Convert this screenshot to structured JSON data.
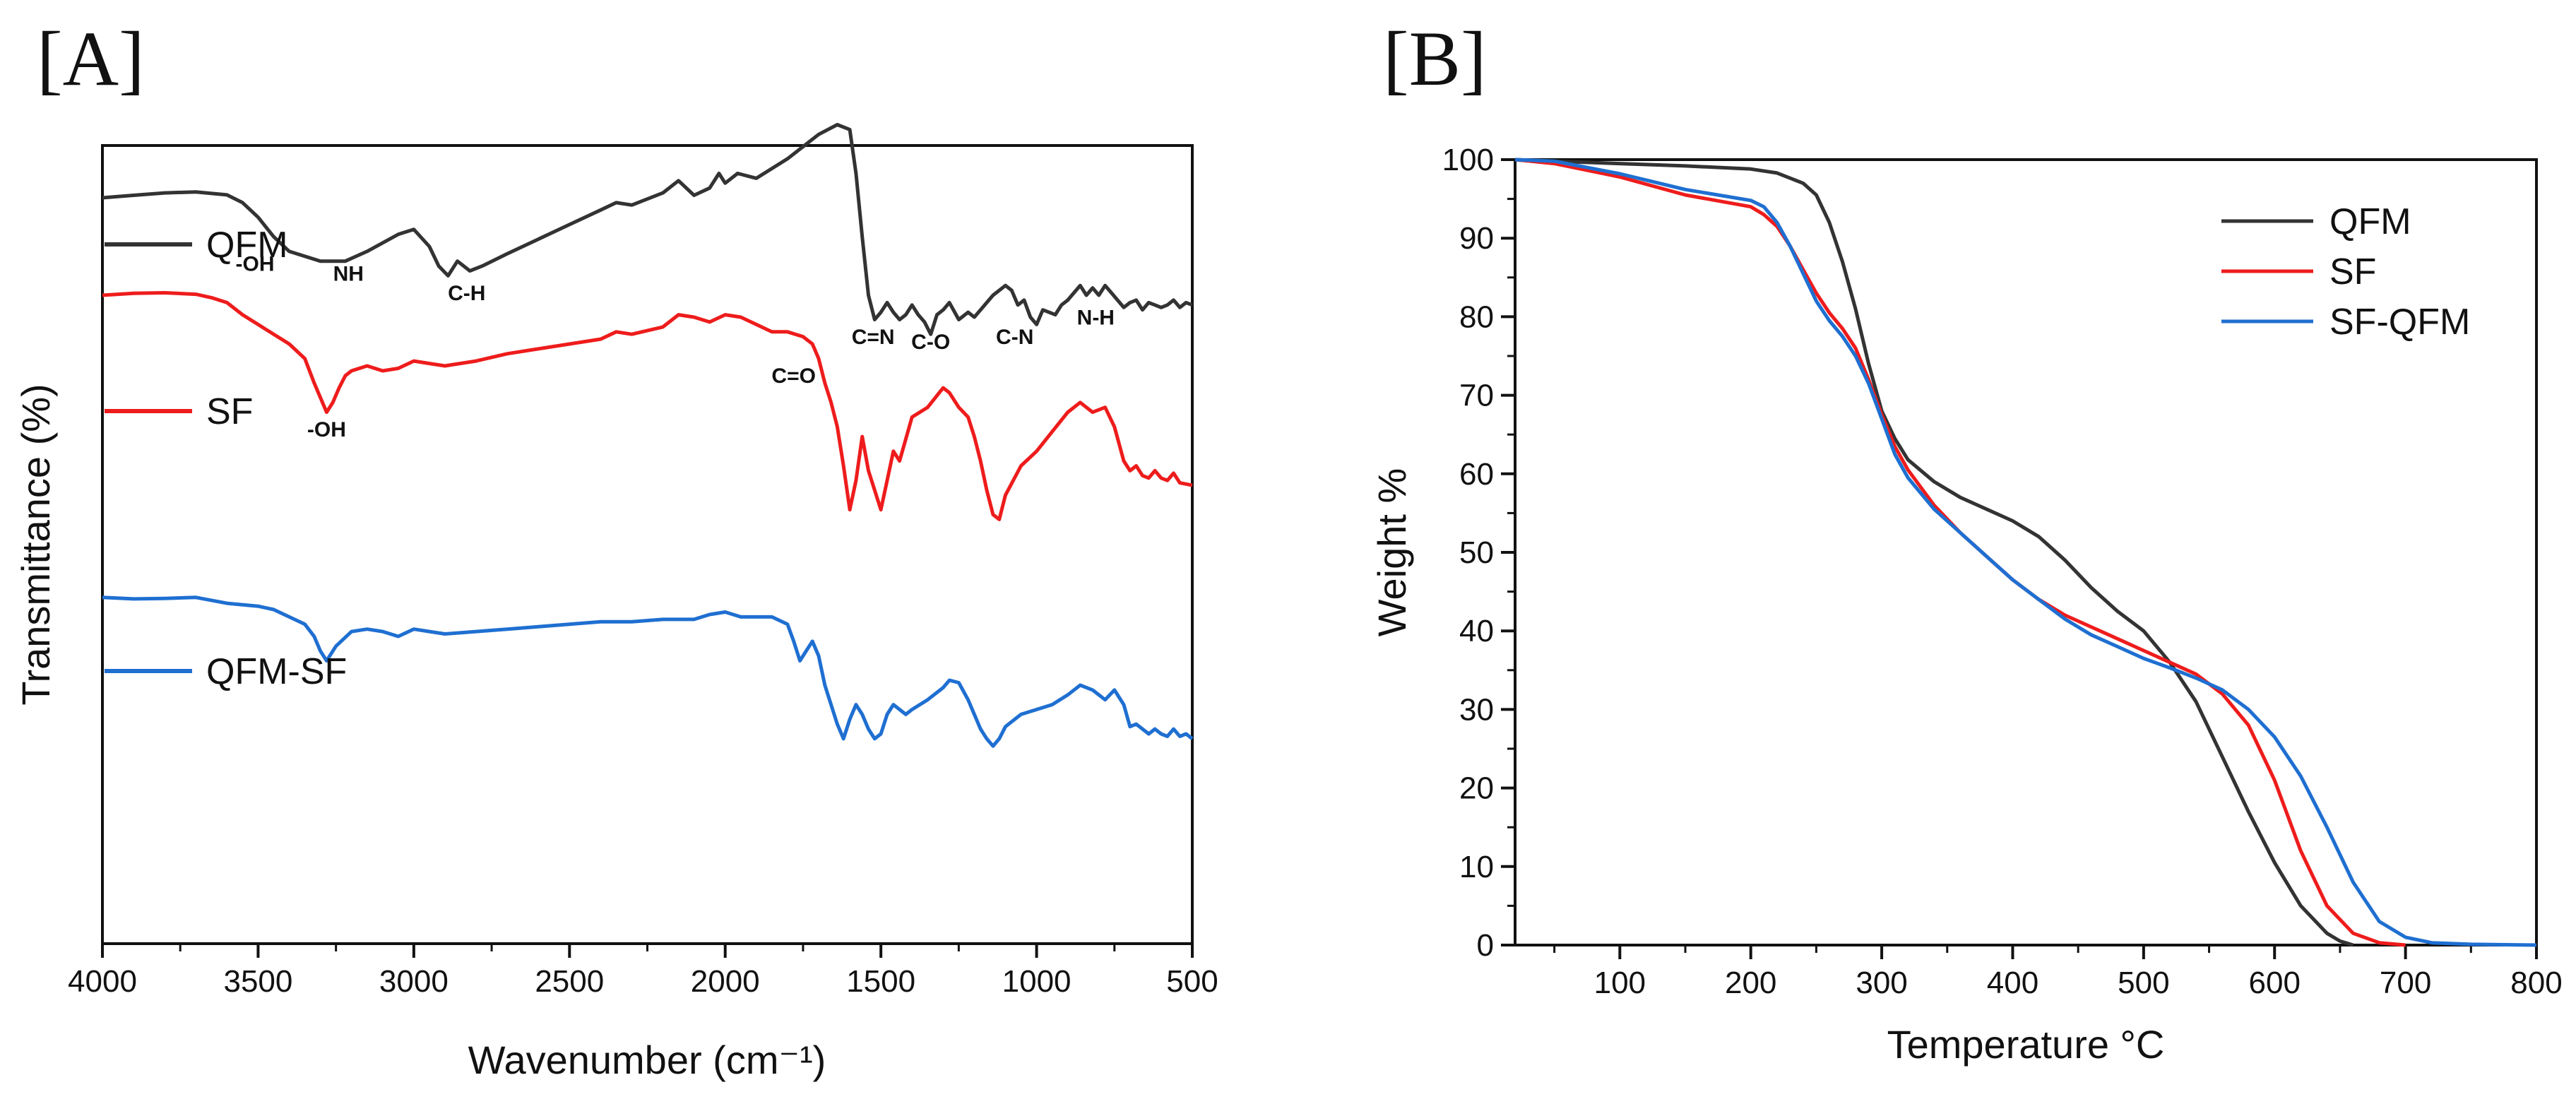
{
  "chart_data": [
    {
      "panel": "[A]",
      "type": "line",
      "xlabel": "Wavenumber (cm⁻¹)",
      "ylabel": "Transmittance (%)",
      "xlim": [
        4000,
        500
      ],
      "xticks": [
        4000,
        3500,
        3000,
        2500,
        2000,
        1500,
        1000,
        500
      ],
      "series": [
        {
          "name": "QFM",
          "color": "#333333",
          "x": [
            4000,
            3900,
            3800,
            3700,
            3600,
            3550,
            3500,
            3450,
            3400,
            3300,
            3220,
            3150,
            3050,
            3000,
            2950,
            2920,
            2890,
            2860,
            2820,
            2780,
            2700,
            2600,
            2500,
            2400,
            2350,
            2300,
            2200,
            2150,
            2100,
            2050,
            2020,
            2000,
            1960,
            1900,
            1800,
            1700,
            1640,
            1600,
            1580,
            1560,
            1540,
            1520,
            1500,
            1480,
            1460,
            1440,
            1420,
            1400,
            1380,
            1360,
            1340,
            1320,
            1300,
            1280,
            1250,
            1220,
            1200,
            1180,
            1160,
            1140,
            1120,
            1100,
            1080,
            1060,
            1040,
            1020,
            1000,
            980,
            960,
            940,
            920,
            900,
            880,
            860,
            840,
            820,
            800,
            780,
            760,
            740,
            720,
            700,
            680,
            660,
            640,
            620,
            600,
            580,
            560,
            540,
            520,
            500
          ],
          "y": [
            50,
            50.5,
            51,
            51.2,
            50.6,
            49,
            46,
            42,
            39,
            37,
            37,
            39,
            42.5,
            43.5,
            40,
            36,
            34,
            37,
            35,
            36,
            38.5,
            41.5,
            44.5,
            47.5,
            49,
            48.5,
            51,
            53.5,
            50.5,
            52,
            55,
            53,
            55,
            54,
            58,
            63,
            65,
            64,
            55,
            42,
            30,
            25,
            26.5,
            28.5,
            26.5,
            25,
            26,
            28,
            26,
            24.5,
            22,
            26,
            27,
            28.5,
            25,
            26.5,
            25.5,
            27,
            28.5,
            30,
            31,
            32,
            31,
            28,
            29,
            25.5,
            24,
            27,
            26.5,
            26,
            28,
            29,
            30.5,
            32,
            30,
            31.5,
            30,
            32,
            30.5,
            29,
            27.5,
            28.5,
            29,
            27,
            28.5,
            28,
            27.5,
            28,
            29,
            27.5,
            28.5,
            28
          ]
        },
        {
          "name": "SF",
          "color": "#ee1c1c",
          "x": [
            4000,
            3900,
            3800,
            3700,
            3650,
            3600,
            3550,
            3500,
            3450,
            3400,
            3350,
            3320,
            3300,
            3280,
            3260,
            3240,
            3220,
            3200,
            3150,
            3100,
            3050,
            3000,
            2950,
            2900,
            2800,
            2700,
            2600,
            2500,
            2400,
            2350,
            2300,
            2200,
            2150,
            2100,
            2050,
            2000,
            1950,
            1900,
            1850,
            1800,
            1750,
            1720,
            1700,
            1680,
            1660,
            1640,
            1620,
            1600,
            1580,
            1560,
            1540,
            1520,
            1500,
            1480,
            1460,
            1440,
            1400,
            1350,
            1300,
            1280,
            1250,
            1220,
            1200,
            1180,
            1160,
            1140,
            1120,
            1100,
            1050,
            1000,
            950,
            900,
            860,
            820,
            780,
            750,
            720,
            700,
            680,
            660,
            640,
            620,
            600,
            580,
            560,
            540,
            500
          ],
          "y": [
            30,
            30.4,
            30.5,
            30.2,
            29.5,
            28.5,
            26,
            24,
            22,
            20,
            17,
            12,
            9,
            6,
            8,
            11,
            13.5,
            14.5,
            15.5,
            14.5,
            15,
            16.5,
            16,
            15.5,
            16.5,
            18,
            19,
            20,
            21,
            22.5,
            22,
            23.5,
            26,
            25.5,
            24.5,
            26,
            25.5,
            24,
            22.5,
            22.5,
            21.5,
            20,
            17,
            12,
            8,
            3,
            -5,
            -14,
            -8,
            1,
            -6,
            -10,
            -14,
            -8,
            -2,
            -4,
            5,
            7,
            11,
            10,
            7,
            5,
            1,
            -4,
            -10,
            -15,
            -16,
            -11,
            -5,
            -2,
            2,
            6,
            8,
            6,
            7,
            3,
            -4,
            -6,
            -5,
            -7,
            -7.5,
            -6,
            -7.5,
            -8,
            -6.5,
            -8.5,
            -9
          ]
        },
        {
          "name": "QFM-SF",
          "color": "#1f6fd1",
          "x": [
            4000,
            3900,
            3800,
            3700,
            3600,
            3500,
            3450,
            3400,
            3350,
            3320,
            3300,
            3280,
            3250,
            3200,
            3150,
            3100,
            3050,
            3000,
            2950,
            2900,
            2800,
            2700,
            2600,
            2500,
            2400,
            2300,
            2200,
            2100,
            2050,
            2000,
            1950,
            1900,
            1850,
            1800,
            1780,
            1760,
            1740,
            1720,
            1700,
            1680,
            1660,
            1640,
            1620,
            1600,
            1580,
            1560,
            1540,
            1520,
            1500,
            1480,
            1460,
            1440,
            1420,
            1400,
            1350,
            1300,
            1280,
            1250,
            1220,
            1200,
            1180,
            1160,
            1140,
            1120,
            1100,
            1050,
            1000,
            950,
            900,
            860,
            820,
            780,
            750,
            720,
            700,
            680,
            660,
            640,
            620,
            600,
            580,
            560,
            540,
            520,
            500
          ],
          "y": [
            -32,
            -32.3,
            -32.2,
            -32,
            -33.2,
            -33.8,
            -34.5,
            -36,
            -37.5,
            -40,
            -43,
            -45,
            -42,
            -39,
            -38.5,
            -39,
            -40,
            -38.5,
            -39,
            -39.5,
            -39,
            -38.5,
            -38,
            -37.5,
            -37,
            -37,
            -36.5,
            -36.5,
            -35.5,
            -35,
            -36,
            -36,
            -36,
            -37.5,
            -41,
            -45,
            -43,
            -41,
            -44,
            -50,
            -54,
            -58,
            -61,
            -57,
            -54,
            -56,
            -59,
            -61,
            -60,
            -56,
            -54,
            -55,
            -56,
            -55,
            -53,
            -50.5,
            -49,
            -49.5,
            -53,
            -56,
            -59,
            -61,
            -62.5,
            -61,
            -58.5,
            -56,
            -55,
            -54,
            -52,
            -50,
            -51,
            -53,
            -51,
            -54,
            -58.5,
            -58,
            -59,
            -60,
            -59,
            -60,
            -60.5,
            -59,
            -60.5,
            -60,
            -61
          ]
        }
      ],
      "legend": [
        "QFM",
        "SF",
        "QFM-SF"
      ],
      "annotations": [
        {
          "text": "-OH",
          "x": 3510,
          "y": 35
        },
        {
          "text": "NH",
          "x": 3210,
          "y": 33
        },
        {
          "text": "C-H",
          "x": 2830,
          "y": 29
        },
        {
          "text": "C=N",
          "x": 1525,
          "y": 20
        },
        {
          "text": "C-O",
          "x": 1340,
          "y": 19
        },
        {
          "text": "C-N",
          "x": 1070,
          "y": 20
        },
        {
          "text": "N-H",
          "x": 810,
          "y": 24
        },
        {
          "text": "-OH",
          "x": 3280,
          "y": 1
        },
        {
          "text": "C=O",
          "x": 1780,
          "y": 12
        }
      ]
    },
    {
      "panel": "[B]",
      "type": "line",
      "xlabel": "Temperature °C",
      "ylabel": "Weight %",
      "xlim": [
        20,
        800
      ],
      "ylim": [
        0,
        100
      ],
      "xticks": [
        100,
        200,
        300,
        400,
        500,
        600,
        700,
        800
      ],
      "yticks": [
        0,
        10,
        20,
        30,
        40,
        50,
        60,
        70,
        80,
        90,
        100
      ],
      "grid": false,
      "legend_position": "top-right",
      "series": [
        {
          "name": "QFM",
          "color": "#333333",
          "x": [
            20,
            50,
            100,
            150,
            200,
            220,
            240,
            250,
            260,
            270,
            280,
            290,
            300,
            310,
            320,
            340,
            360,
            380,
            400,
            420,
            440,
            460,
            480,
            500,
            520,
            540,
            560,
            580,
            600,
            620,
            640,
            650,
            660
          ],
          "y": [
            100,
            99.8,
            99.5,
            99.2,
            98.8,
            98.3,
            97,
            95.5,
            92,
            87,
            81,
            74,
            68,
            64.5,
            61.8,
            59,
            57,
            55.5,
            54,
            52,
            49,
            45.5,
            42.5,
            40,
            36,
            31,
            24,
            17,
            10.5,
            5,
            1.5,
            0.5,
            0
          ]
        },
        {
          "name": "SF",
          "color": "#ee1c1c",
          "x": [
            20,
            50,
            100,
            150,
            200,
            210,
            220,
            230,
            240,
            250,
            260,
            270,
            280,
            290,
            300,
            310,
            320,
            340,
            360,
            380,
            400,
            420,
            440,
            460,
            480,
            500,
            520,
            540,
            560,
            580,
            600,
            620,
            640,
            660,
            680,
            700
          ],
          "y": [
            100,
            99.5,
            97.8,
            95.5,
            94,
            93,
            91.5,
            89,
            86,
            83,
            80.5,
            78.5,
            76,
            72,
            67.5,
            63.5,
            60.5,
            56,
            52.5,
            49.5,
            46.5,
            44,
            42,
            40.5,
            39,
            37.5,
            36,
            34.5,
            32,
            28,
            21,
            12,
            5,
            1.5,
            0.3,
            0
          ]
        },
        {
          "name": "SF-QFM",
          "color": "#1f6fd1",
          "x": [
            20,
            50,
            100,
            150,
            200,
            210,
            220,
            230,
            240,
            250,
            260,
            270,
            280,
            290,
            300,
            310,
            320,
            340,
            360,
            380,
            400,
            420,
            440,
            460,
            480,
            500,
            520,
            540,
            560,
            580,
            600,
            620,
            640,
            660,
            680,
            700,
            720,
            750,
            800
          ],
          "y": [
            100,
            99.8,
            98.2,
            96.2,
            94.8,
            94,
            92,
            89,
            85.5,
            82,
            79.5,
            77.5,
            75,
            71.5,
            67,
            62.5,
            59.5,
            55.5,
            52.5,
            49.5,
            46.5,
            44,
            41.5,
            39.5,
            38,
            36.5,
            35.3,
            34,
            32.5,
            30,
            26.5,
            21.5,
            15,
            8,
            3,
            1,
            0.3,
            0.1,
            0
          ]
        }
      ],
      "legend": [
        "QFM",
        "SF",
        "SF-QFM"
      ]
    }
  ]
}
